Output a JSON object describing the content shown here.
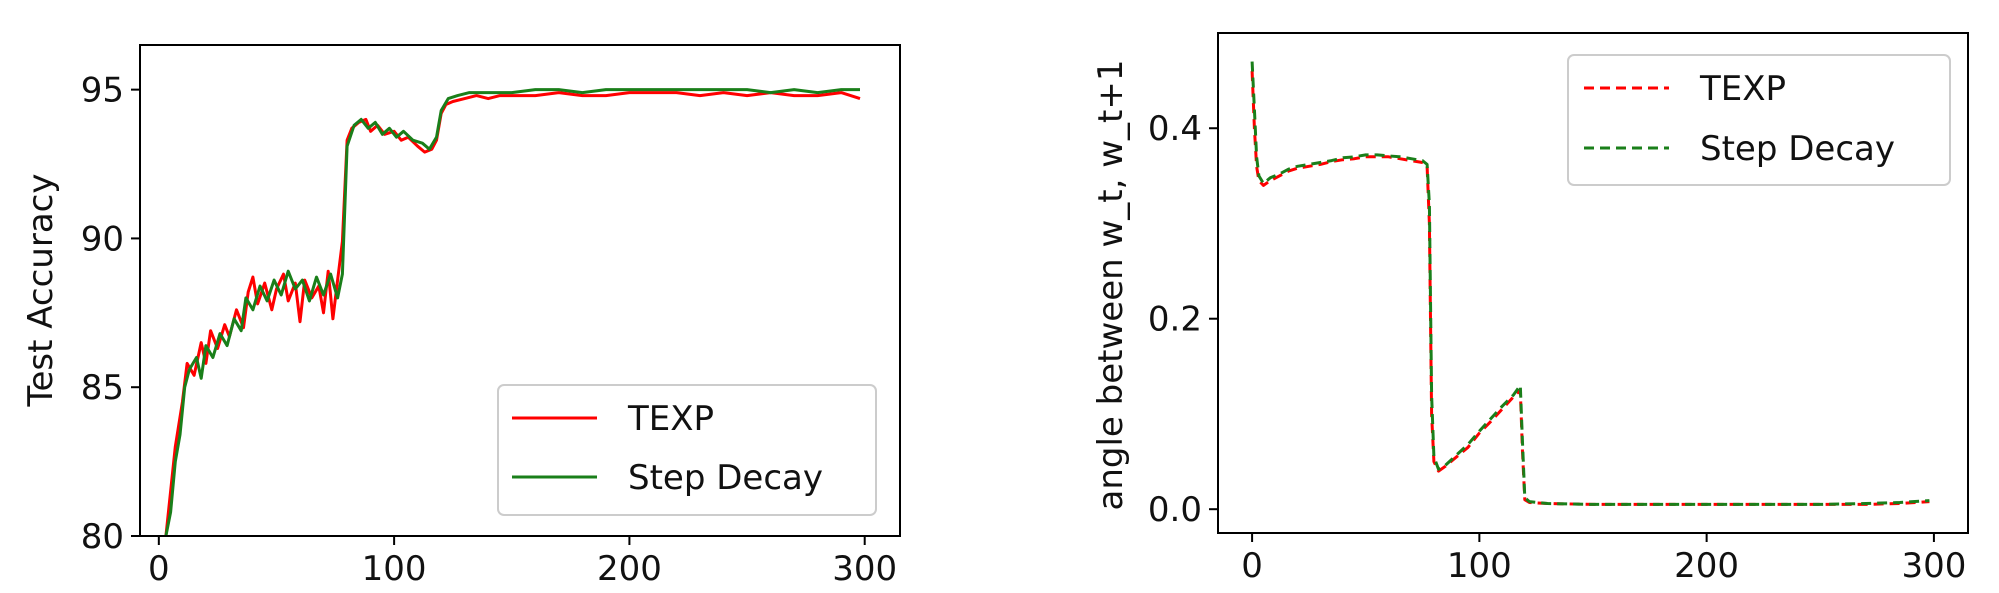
{
  "chart_data": [
    {
      "type": "line",
      "title": "",
      "xlabel": "",
      "ylabel": "Test Accuracy",
      "xlim": [
        -8,
        315
      ],
      "ylim": [
        80,
        96.5
      ],
      "xticks": [
        "0",
        "100",
        "200",
        "300"
      ],
      "yticks": [
        "80",
        "85",
        "90",
        "95"
      ],
      "legend": {
        "position": "lower-right"
      },
      "grid": false,
      "series": [
        {
          "name": "TEXP",
          "color": "#ff0000",
          "style": "solid",
          "points": [
            [
              3,
              80.0
            ],
            [
              5,
              81.5
            ],
            [
              7,
              83.0
            ],
            [
              10,
              84.5
            ],
            [
              12,
              85.8
            ],
            [
              15,
              85.4
            ],
            [
              18,
              86.5
            ],
            [
              20,
              85.8
            ],
            [
              22,
              86.9
            ],
            [
              25,
              86.3
            ],
            [
              28,
              87.1
            ],
            [
              30,
              86.7
            ],
            [
              33,
              87.6
            ],
            [
              36,
              87.0
            ],
            [
              38,
              88.2
            ],
            [
              40,
              88.7
            ],
            [
              42,
              87.8
            ],
            [
              45,
              88.5
            ],
            [
              48,
              87.6
            ],
            [
              50,
              88.3
            ],
            [
              53,
              88.8
            ],
            [
              55,
              87.9
            ],
            [
              58,
              88.5
            ],
            [
              60,
              87.2
            ],
            [
              62,
              88.6
            ],
            [
              65,
              88.0
            ],
            [
              68,
              88.4
            ],
            [
              70,
              87.5
            ],
            [
              72,
              88.9
            ],
            [
              74,
              87.3
            ],
            [
              76,
              88.6
            ],
            [
              78,
              89.9
            ],
            [
              80,
              93.3
            ],
            [
              82,
              93.7
            ],
            [
              85,
              93.9
            ],
            [
              88,
              94.0
            ],
            [
              90,
              93.6
            ],
            [
              93,
              93.8
            ],
            [
              96,
              93.5
            ],
            [
              100,
              93.6
            ],
            [
              103,
              93.3
            ],
            [
              106,
              93.4
            ],
            [
              110,
              93.1
            ],
            [
              113,
              92.9
            ],
            [
              116,
              93.0
            ],
            [
              118,
              93.3
            ],
            [
              120,
              94.2
            ],
            [
              122,
              94.5
            ],
            [
              125,
              94.6
            ],
            [
              130,
              94.7
            ],
            [
              135,
              94.8
            ],
            [
              140,
              94.7
            ],
            [
              145,
              94.8
            ],
            [
              150,
              94.8
            ],
            [
              160,
              94.8
            ],
            [
              170,
              94.9
            ],
            [
              180,
              94.8
            ],
            [
              190,
              94.8
            ],
            [
              200,
              94.9
            ],
            [
              210,
              94.9
            ],
            [
              220,
              94.9
            ],
            [
              230,
              94.8
            ],
            [
              240,
              94.9
            ],
            [
              250,
              94.8
            ],
            [
              260,
              94.9
            ],
            [
              270,
              94.8
            ],
            [
              280,
              94.8
            ],
            [
              290,
              94.9
            ],
            [
              298,
              94.7
            ]
          ]
        },
        {
          "name": "Step Decay",
          "color": "#1a7f1a",
          "style": "solid",
          "points": [
            [
              3,
              80.0
            ],
            [
              5,
              80.8
            ],
            [
              7,
              82.5
            ],
            [
              9,
              83.4
            ],
            [
              11,
              85.0
            ],
            [
              13,
              85.6
            ],
            [
              16,
              86.0
            ],
            [
              18,
              85.3
            ],
            [
              20,
              86.4
            ],
            [
              23,
              86.0
            ],
            [
              26,
              86.8
            ],
            [
              29,
              86.4
            ],
            [
              32,
              87.3
            ],
            [
              35,
              86.9
            ],
            [
              37,
              88.0
            ],
            [
              40,
              87.6
            ],
            [
              43,
              88.4
            ],
            [
              46,
              87.9
            ],
            [
              49,
              88.6
            ],
            [
              52,
              88.1
            ],
            [
              55,
              88.9
            ],
            [
              58,
              88.3
            ],
            [
              61,
              88.6
            ],
            [
              64,
              87.9
            ],
            [
              67,
              88.7
            ],
            [
              70,
              88.1
            ],
            [
              73,
              88.8
            ],
            [
              76,
              88.0
            ],
            [
              78,
              88.8
            ],
            [
              80,
              93.1
            ],
            [
              83,
              93.8
            ],
            [
              86,
              94.0
            ],
            [
              89,
              93.7
            ],
            [
              92,
              93.9
            ],
            [
              95,
              93.5
            ],
            [
              98,
              93.7
            ],
            [
              101,
              93.4
            ],
            [
              104,
              93.6
            ],
            [
              108,
              93.3
            ],
            [
              112,
              93.2
            ],
            [
              115,
              93.0
            ],
            [
              118,
              93.4
            ],
            [
              120,
              94.3
            ],
            [
              123,
              94.7
            ],
            [
              127,
              94.8
            ],
            [
              132,
              94.9
            ],
            [
              137,
              94.9
            ],
            [
              142,
              94.9
            ],
            [
              150,
              94.9
            ],
            [
              160,
              95.0
            ],
            [
              170,
              95.0
            ],
            [
              180,
              94.9
            ],
            [
              190,
              95.0
            ],
            [
              200,
              95.0
            ],
            [
              210,
              95.0
            ],
            [
              220,
              95.0
            ],
            [
              230,
              95.0
            ],
            [
              240,
              95.0
            ],
            [
              250,
              95.0
            ],
            [
              260,
              94.9
            ],
            [
              270,
              95.0
            ],
            [
              280,
              94.9
            ],
            [
              290,
              95.0
            ],
            [
              298,
              95.0
            ]
          ]
        }
      ]
    },
    {
      "type": "line",
      "title": "",
      "xlabel": "",
      "ylabel": "angle between w_t, w_t+1",
      "xlim": [
        -15,
        315
      ],
      "ylim": [
        -0.025,
        0.5
      ],
      "xticks": [
        "0",
        "100",
        "200",
        "300"
      ],
      "yticks": [
        "0.0",
        "0.2",
        "0.4"
      ],
      "legend": {
        "position": "upper-right"
      },
      "grid": false,
      "series": [
        {
          "name": "TEXP",
          "color": "#ff0000",
          "style": "dashed",
          "points": [
            [
              0,
              0.46
            ],
            [
              1,
              0.4
            ],
            [
              2,
              0.36
            ],
            [
              3,
              0.345
            ],
            [
              5,
              0.34
            ],
            [
              8,
              0.345
            ],
            [
              12,
              0.35
            ],
            [
              16,
              0.355
            ],
            [
              20,
              0.358
            ],
            [
              25,
              0.36
            ],
            [
              30,
              0.362
            ],
            [
              35,
              0.365
            ],
            [
              40,
              0.367
            ],
            [
              45,
              0.368
            ],
            [
              50,
              0.37
            ],
            [
              55,
              0.37
            ],
            [
              60,
              0.37
            ],
            [
              65,
              0.368
            ],
            [
              70,
              0.366
            ],
            [
              75,
              0.364
            ],
            [
              77,
              0.36
            ],
            [
              78,
              0.3
            ],
            [
              79,
              0.1
            ],
            [
              80,
              0.05
            ],
            [
              82,
              0.04
            ],
            [
              85,
              0.045
            ],
            [
              90,
              0.055
            ],
            [
              95,
              0.065
            ],
            [
              100,
              0.08
            ],
            [
              105,
              0.092
            ],
            [
              110,
              0.105
            ],
            [
              115,
              0.118
            ],
            [
              118,
              0.125
            ],
            [
              119,
              0.06
            ],
            [
              120,
              0.01
            ],
            [
              122,
              0.007
            ],
            [
              130,
              0.006
            ],
            [
              150,
              0.005
            ],
            [
              175,
              0.005
            ],
            [
              200,
              0.005
            ],
            [
              225,
              0.005
            ],
            [
              250,
              0.005
            ],
            [
              270,
              0.005
            ],
            [
              285,
              0.006
            ],
            [
              298,
              0.008
            ]
          ]
        },
        {
          "name": "Step Decay",
          "color": "#1a7f1a",
          "style": "dashed",
          "points": [
            [
              0,
              0.47
            ],
            [
              1,
              0.42
            ],
            [
              2,
              0.37
            ],
            [
              3,
              0.35
            ],
            [
              5,
              0.342
            ],
            [
              8,
              0.348
            ],
            [
              12,
              0.352
            ],
            [
              16,
              0.357
            ],
            [
              20,
              0.36
            ],
            [
              25,
              0.362
            ],
            [
              30,
              0.364
            ],
            [
              35,
              0.366
            ],
            [
              40,
              0.369
            ],
            [
              45,
              0.37
            ],
            [
              50,
              0.372
            ],
            [
              55,
              0.372
            ],
            [
              60,
              0.371
            ],
            [
              65,
              0.37
            ],
            [
              70,
              0.368
            ],
            [
              75,
              0.366
            ],
            [
              77,
              0.362
            ],
            [
              78,
              0.32
            ],
            [
              79,
              0.12
            ],
            [
              80,
              0.055
            ],
            [
              82,
              0.042
            ],
            [
              85,
              0.046
            ],
            [
              90,
              0.057
            ],
            [
              95,
              0.068
            ],
            [
              100,
              0.082
            ],
            [
              105,
              0.095
            ],
            [
              110,
              0.108
            ],
            [
              115,
              0.12
            ],
            [
              118,
              0.13
            ],
            [
              119,
              0.07
            ],
            [
              120,
              0.012
            ],
            [
              122,
              0.008
            ],
            [
              130,
              0.006
            ],
            [
              150,
              0.005
            ],
            [
              175,
              0.005
            ],
            [
              200,
              0.005
            ],
            [
              225,
              0.005
            ],
            [
              250,
              0.005
            ],
            [
              270,
              0.006
            ],
            [
              285,
              0.007
            ],
            [
              298,
              0.009
            ]
          ]
        }
      ]
    }
  ]
}
